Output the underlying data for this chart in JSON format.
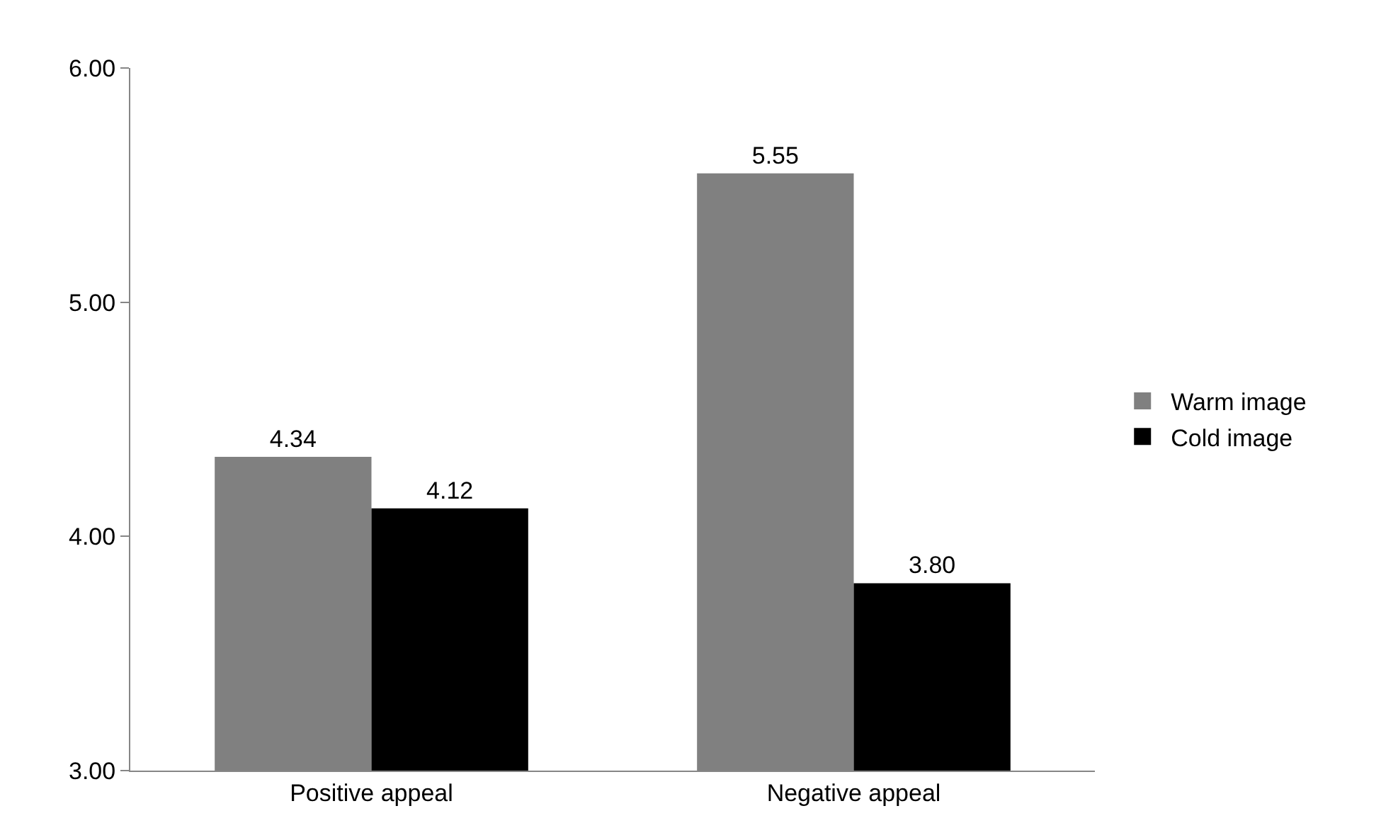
{
  "chart_data": {
    "type": "bar",
    "categories": [
      "Positive appeal",
      "Negative appeal"
    ],
    "series": [
      {
        "name": "Warm image",
        "color": "#808080",
        "values": [
          4.34,
          5.55
        ],
        "value_labels": [
          "4.34",
          "5.55"
        ]
      },
      {
        "name": "Cold image",
        "color": "#000000",
        "values": [
          4.12,
          3.8
        ],
        "value_labels": [
          "4.12",
          "3.80"
        ]
      }
    ],
    "ylim": [
      3,
      6
    ],
    "yticks": [
      {
        "value": 3,
        "label": "3.00"
      },
      {
        "value": 4,
        "label": "4.00"
      },
      {
        "value": 5,
        "label": "5.00"
      },
      {
        "value": 6,
        "label": "6.00"
      }
    ],
    "grid": false,
    "legend": "right"
  }
}
